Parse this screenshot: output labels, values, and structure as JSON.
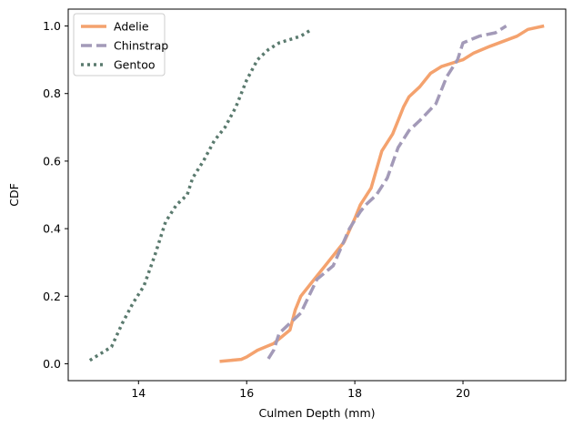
{
  "chart_data": {
    "type": "line",
    "title": "",
    "xlabel": "Culmen Depth (mm)",
    "ylabel": "CDF",
    "xlim": [
      12.7,
      21.9
    ],
    "ylim": [
      -0.05,
      1.05
    ],
    "grid": false,
    "legend_position": "top-left",
    "x_ticks": [
      14,
      16,
      18,
      20
    ],
    "x_tick_labels": [
      "14",
      "16",
      "18",
      "20"
    ],
    "y_ticks": [
      0.0,
      0.2,
      0.4,
      0.6,
      0.8,
      1.0
    ],
    "y_tick_labels": [
      "0.0",
      "0.2",
      "0.4",
      "0.6",
      "0.8",
      "1.0"
    ],
    "series": [
      {
        "name": "Adelie",
        "color": "#f4a26e",
        "style": "solid",
        "x": [
          15.5,
          15.9,
          16.0,
          16.2,
          16.5,
          16.8,
          16.9,
          17.0,
          17.2,
          17.5,
          17.8,
          18.0,
          18.1,
          18.3,
          18.5,
          18.7,
          18.8,
          18.9,
          19.0,
          19.2,
          19.4,
          19.6,
          20.0,
          20.2,
          20.5,
          21.0,
          21.2,
          21.5
        ],
        "y": [
          0.007,
          0.013,
          0.02,
          0.04,
          0.06,
          0.1,
          0.16,
          0.2,
          0.24,
          0.3,
          0.36,
          0.43,
          0.47,
          0.52,
          0.63,
          0.68,
          0.72,
          0.76,
          0.79,
          0.82,
          0.86,
          0.88,
          0.9,
          0.92,
          0.94,
          0.97,
          0.99,
          1.0
        ]
      },
      {
        "name": "Chinstrap",
        "color": "#a39ab8",
        "style": "dashed",
        "x": [
          16.4,
          16.5,
          16.6,
          16.8,
          17.0,
          17.3,
          17.6,
          17.9,
          18.1,
          18.2,
          18.4,
          18.6,
          18.8,
          19.0,
          19.2,
          19.5,
          19.7,
          19.9,
          20.0,
          20.3,
          20.6,
          20.8
        ],
        "y": [
          0.015,
          0.04,
          0.09,
          0.12,
          0.15,
          0.25,
          0.29,
          0.4,
          0.45,
          0.47,
          0.5,
          0.55,
          0.64,
          0.69,
          0.72,
          0.77,
          0.85,
          0.9,
          0.95,
          0.97,
          0.98,
          1.0
        ]
      },
      {
        "name": "Gentoo",
        "color": "#5a7a6e",
        "style": "dotted",
        "x": [
          13.1,
          13.3,
          13.5,
          13.7,
          13.9,
          14.1,
          14.3,
          14.5,
          14.7,
          14.9,
          15.0,
          15.2,
          15.4,
          15.6,
          15.8,
          16.0,
          16.2,
          16.4,
          16.6,
          16.8,
          17.0,
          17.2
        ],
        "y": [
          0.01,
          0.03,
          0.05,
          0.12,
          0.18,
          0.23,
          0.32,
          0.42,
          0.47,
          0.5,
          0.55,
          0.6,
          0.66,
          0.7,
          0.76,
          0.84,
          0.9,
          0.93,
          0.95,
          0.96,
          0.97,
          0.99
        ]
      }
    ]
  }
}
